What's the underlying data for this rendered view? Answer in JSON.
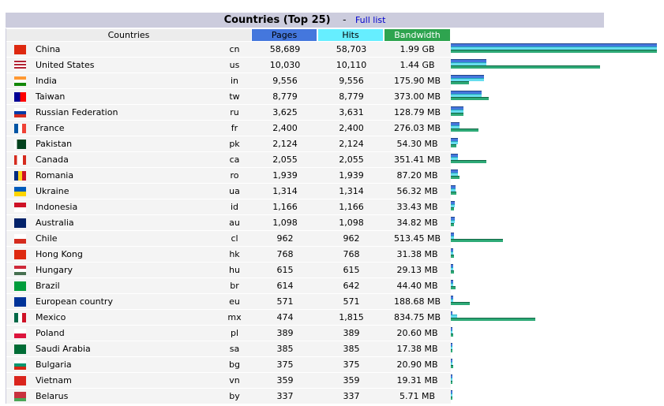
{
  "title": "Countries (Top 25)",
  "separator": "-",
  "full_list": "Full list",
  "headers": {
    "countries": "Countries",
    "pages": "Pages",
    "hits": "Hits",
    "bandwidth": "Bandwidth"
  },
  "header_colors": {
    "pages": "#4477dd",
    "hits": "#66eeff",
    "bandwidth": "#2ea44f"
  },
  "max": {
    "pages": 58689,
    "hits": 58703,
    "bandwidth_mb": 2038
  },
  "rows": [
    {
      "flag": "cn",
      "name": "China",
      "code": "cn",
      "pages": "58,689",
      "hits": "58,703",
      "bw": "1.99 GB",
      "p": 58689,
      "h": 58703,
      "b": 2038
    },
    {
      "flag": "us",
      "name": "United States",
      "code": "us",
      "pages": "10,030",
      "hits": "10,110",
      "bw": "1.44 GB",
      "p": 10030,
      "h": 10110,
      "b": 1475
    },
    {
      "flag": "in",
      "name": "India",
      "code": "in",
      "pages": "9,556",
      "hits": "9,556",
      "bw": "175.90 MB",
      "p": 9556,
      "h": 9556,
      "b": 175.9
    },
    {
      "flag": "tw",
      "name": "Taiwan",
      "code": "tw",
      "pages": "8,779",
      "hits": "8,779",
      "bw": "373.00 MB",
      "p": 8779,
      "h": 8779,
      "b": 373
    },
    {
      "flag": "ru",
      "name": "Russian Federation",
      "code": "ru",
      "pages": "3,625",
      "hits": "3,631",
      "bw": "128.79 MB",
      "p": 3625,
      "h": 3631,
      "b": 128.79
    },
    {
      "flag": "fr",
      "name": "France",
      "code": "fr",
      "pages": "2,400",
      "hits": "2,400",
      "bw": "276.03 MB",
      "p": 2400,
      "h": 2400,
      "b": 276.03
    },
    {
      "flag": "pk",
      "name": "Pakistan",
      "code": "pk",
      "pages": "2,124",
      "hits": "2,124",
      "bw": "54.30 MB",
      "p": 2124,
      "h": 2124,
      "b": 54.3
    },
    {
      "flag": "ca",
      "name": "Canada",
      "code": "ca",
      "pages": "2,055",
      "hits": "2,055",
      "bw": "351.41 MB",
      "p": 2055,
      "h": 2055,
      "b": 351.41
    },
    {
      "flag": "ro",
      "name": "Romania",
      "code": "ro",
      "pages": "1,939",
      "hits": "1,939",
      "bw": "87.20 MB",
      "p": 1939,
      "h": 1939,
      "b": 87.2
    },
    {
      "flag": "ua",
      "name": "Ukraine",
      "code": "ua",
      "pages": "1,314",
      "hits": "1,314",
      "bw": "56.32 MB",
      "p": 1314,
      "h": 1314,
      "b": 56.32
    },
    {
      "flag": "id",
      "name": "Indonesia",
      "code": "id",
      "pages": "1,166",
      "hits": "1,166",
      "bw": "33.43 MB",
      "p": 1166,
      "h": 1166,
      "b": 33.43
    },
    {
      "flag": "au",
      "name": "Australia",
      "code": "au",
      "pages": "1,098",
      "hits": "1,098",
      "bw": "34.82 MB",
      "p": 1098,
      "h": 1098,
      "b": 34.82
    },
    {
      "flag": "cl",
      "name": "Chile",
      "code": "cl",
      "pages": "962",
      "hits": "962",
      "bw": "513.45 MB",
      "p": 962,
      "h": 962,
      "b": 513.45
    },
    {
      "flag": "hk",
      "name": "Hong Kong",
      "code": "hk",
      "pages": "768",
      "hits": "768",
      "bw": "31.38 MB",
      "p": 768,
      "h": 768,
      "b": 31.38
    },
    {
      "flag": "hu",
      "name": "Hungary",
      "code": "hu",
      "pages": "615",
      "hits": "615",
      "bw": "29.13 MB",
      "p": 615,
      "h": 615,
      "b": 29.13
    },
    {
      "flag": "br",
      "name": "Brazil",
      "code": "br",
      "pages": "614",
      "hits": "642",
      "bw": "44.40 MB",
      "p": 614,
      "h": 642,
      "b": 44.4
    },
    {
      "flag": "eu",
      "name": "European country",
      "code": "eu",
      "pages": "571",
      "hits": "571",
      "bw": "188.68 MB",
      "p": 571,
      "h": 571,
      "b": 188.68
    },
    {
      "flag": "mx",
      "name": "Mexico",
      "code": "mx",
      "pages": "474",
      "hits": "1,815",
      "bw": "834.75 MB",
      "p": 474,
      "h": 1815,
      "b": 834.75
    },
    {
      "flag": "pl",
      "name": "Poland",
      "code": "pl",
      "pages": "389",
      "hits": "389",
      "bw": "20.60 MB",
      "p": 389,
      "h": 389,
      "b": 20.6
    },
    {
      "flag": "sa",
      "name": "Saudi Arabia",
      "code": "sa",
      "pages": "385",
      "hits": "385",
      "bw": "17.38 MB",
      "p": 385,
      "h": 385,
      "b": 17.38
    },
    {
      "flag": "bg",
      "name": "Bulgaria",
      "code": "bg",
      "pages": "375",
      "hits": "375",
      "bw": "20.90 MB",
      "p": 375,
      "h": 375,
      "b": 20.9
    },
    {
      "flag": "vn",
      "name": "Vietnam",
      "code": "vn",
      "pages": "359",
      "hits": "359",
      "bw": "19.31 MB",
      "p": 359,
      "h": 359,
      "b": 19.31
    },
    {
      "flag": "by",
      "name": "Belarus",
      "code": "by",
      "pages": "337",
      "hits": "337",
      "bw": "5.71 MB",
      "p": 337,
      "h": 337,
      "b": 5.71
    }
  ]
}
